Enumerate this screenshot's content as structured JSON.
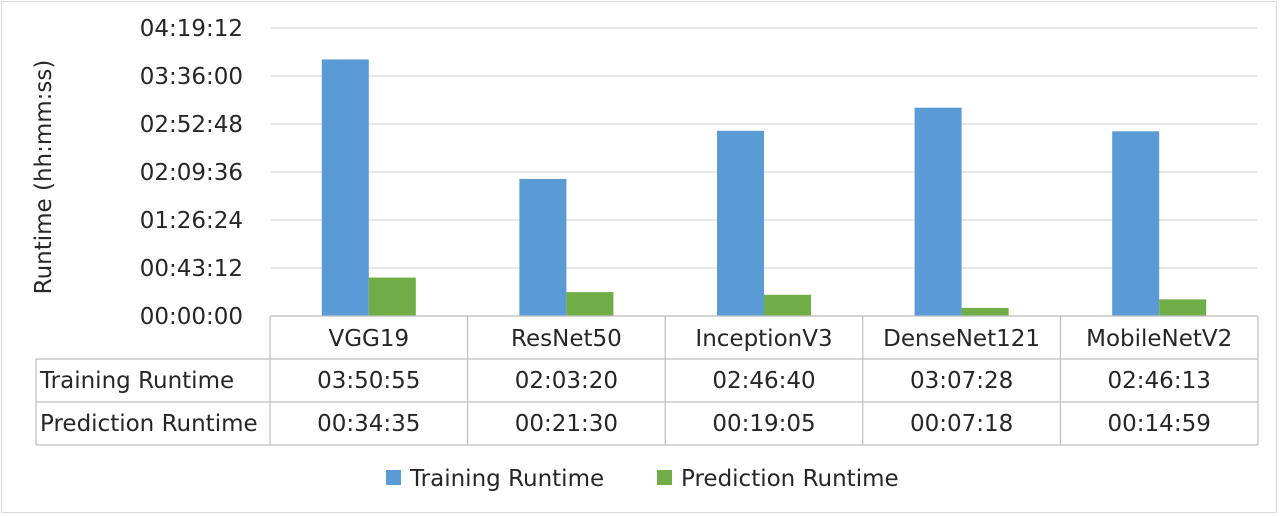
{
  "chart_data": {
    "type": "bar",
    "title": "",
    "xlabel": "",
    "ylabel": "Runtime (hh:mm:ss)",
    "y_tick_labels": [
      "00:00:00",
      "00:43:12",
      "01:26:24",
      "02:09:36",
      "02:52:48",
      "03:36:00",
      "04:19:12"
    ],
    "ylim_seconds": [
      0,
      15552
    ],
    "grid": true,
    "legend_position": "bottom",
    "categories": [
      "VGG19",
      "ResNet50",
      "InceptionV3",
      "DenseNet121",
      "MobileNetV2"
    ],
    "series": [
      {
        "name": "Training Runtime",
        "color": "#5b9bd5",
        "values_seconds": [
          13855,
          7400,
          10000,
          11248,
          9973
        ],
        "table_values": [
          "03:50:55",
          "02:03:20",
          "02:46:40",
          "03:07:28",
          "02:46:13"
        ]
      },
      {
        "name": "Prediction Runtime",
        "color": "#70ad47",
        "values_seconds": [
          2075,
          1290,
          1145,
          438,
          899
        ],
        "table_values": [
          "00:34:35",
          "00:21:30",
          "00:19:05",
          "00:07:18",
          "00:14:59"
        ]
      }
    ],
    "data_table": true
  }
}
